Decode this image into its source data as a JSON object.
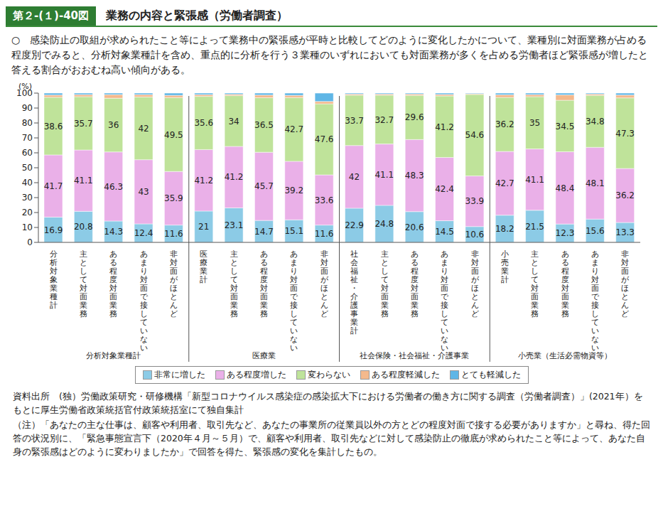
{
  "chart_data": {
    "type": "bar",
    "stacked": true,
    "grid": false,
    "figure_number": "第２-(１)-40図",
    "title": "業務の内容と緊張感（労働者調査）",
    "subtitle": "○　感染防止の取組が求められたこと等によって業務中の緊張感が平時と比較してどのように変化したかについて、業種別に対面業務が占める程度別でみると、分析対象業種計を含め、重点的に分析を行う３業種のいずれにおいても対面業務が多くを占める労働者ほど緊張感が増したと答える割合がおおむね高い傾向がある。",
    "y_label": "(%)",
    "ylim": [
      0,
      100
    ],
    "yticks": [
      0,
      10,
      20,
      30,
      40,
      50,
      60,
      70,
      80,
      90,
      100
    ],
    "categories": [
      "分析対象業種計",
      "主として対面業務",
      "ある程度対面業務",
      "あまり対面で接していない",
      "非対面がほとんど",
      "医療業計",
      "主として対面業務",
      "ある程度対面業務",
      "あまり対面で接していない",
      "非対面がほとんど",
      "社会福祉・介護事業計",
      "主として対面業務",
      "ある程度対面業務",
      "あまり対面で接していない",
      "非対面がほとんど",
      "小売業計",
      "主として対面業務",
      "ある程度対面業務",
      "あまり対面で接していない",
      "非対面がほとんど"
    ],
    "group_labels": [
      "分析対象業種計",
      "医療業",
      "社会保険・社会福祉・介護事業",
      "小売業（生活必需物資等）"
    ],
    "series": [
      {
        "name": "非常に増した",
        "color": "#8ccbe6",
        "data_labels": true,
        "values": [
          16.9,
          20.8,
          14.3,
          12.4,
          11.6,
          21.0,
          23.1,
          14.7,
          15.1,
          11.6,
          22.9,
          24.8,
          20.6,
          14.5,
          10.6,
          18.2,
          21.5,
          12.3,
          15.6,
          13.3
        ]
      },
      {
        "name": "ある程度増した",
        "color": "#eab0e8",
        "data_labels": true,
        "values": [
          41.7,
          41.1,
          46.3,
          43.0,
          35.9,
          41.2,
          41.2,
          45.7,
          39.2,
          33.6,
          42.0,
          41.1,
          48.3,
          42.4,
          33.9,
          42.7,
          41.1,
          48.4,
          48.1,
          36.2
        ]
      },
      {
        "name": "変わらない",
        "color": "#bfe39a",
        "data_labels": true,
        "values": [
          38.6,
          35.7,
          36.0,
          42.0,
          49.5,
          35.6,
          34.0,
          36.5,
          42.7,
          47.6,
          33.7,
          32.7,
          29.6,
          41.2,
          54.6,
          36.2,
          35.0,
          34.5,
          34.8,
          47.3
        ]
      },
      {
        "name": "ある程度軽減した",
        "color": "#f4b98c",
        "data_labels": false,
        "values": [
          1.5,
          1.4,
          2.4,
          1.6,
          1.5,
          1.2,
          0.9,
          1.8,
          1.5,
          1.6,
          0.8,
          0.8,
          0.9,
          1.0,
          0.5,
          1.8,
          1.4,
          3.6,
          0.9,
          1.9
        ]
      },
      {
        "name": "とても軽減した",
        "color": "#5fb6e6",
        "data_labels": false,
        "values": [
          1.3,
          1.0,
          1.0,
          1.0,
          1.5,
          1.0,
          0.8,
          1.3,
          1.5,
          5.6,
          0.6,
          0.6,
          0.6,
          0.9,
          0.4,
          1.1,
          1.0,
          1.2,
          0.6,
          1.3
        ]
      }
    ],
    "notes": [
      "資料出所　(独）労働政策研究・研修機構「新型コロナウイルス感染症の感染拡大下における労働者の働き方に関する調査（労働者調査）」(2021年）をもとに厚生労働省政策統括官付政策統括室にて独自集計",
      "（注）「あなたの主な仕事は、顧客や利用者、取引先など、あなたの事業所の従業員以外の方とどの程度対面で接する必要がありますか」と尋ね、得た回答の状況別に、「緊急事態宣言下（2020年４月～５月）で、顧客や利用者、取引先などに対して感染防止の徹底が求められたこと等によって、あなた自身の緊張感はどのように変わりましたか」で回答を得た、緊張感の変化を集計したもの。"
    ]
  }
}
